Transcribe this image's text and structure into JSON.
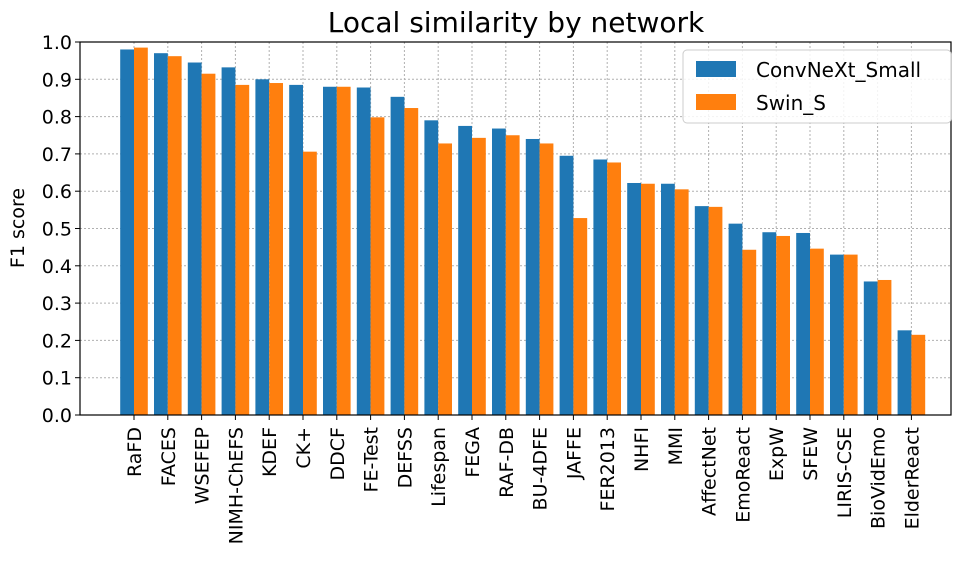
{
  "chart_data": {
    "type": "bar",
    "title": "Local similarity by network",
    "xlabel": "",
    "ylabel": "F1 score",
    "ylim": [
      0.0,
      1.0
    ],
    "yticks": [
      "0.0",
      "0.1",
      "0.2",
      "0.3",
      "0.4",
      "0.5",
      "0.6",
      "0.7",
      "0.8",
      "0.9",
      "1.0"
    ],
    "grid": true,
    "legend_position": "top-right",
    "categories": [
      "RaFD",
      "FACES",
      "WSEFEP",
      "NIMH-ChEFS",
      "KDEF",
      "CK+",
      "DDCF",
      "FE-Test",
      "DEFSS",
      "Lifespan",
      "FEGA",
      "RAF-DB",
      "BU-4DFE",
      "JAFFE",
      "FER2013",
      "NHFI",
      "MMI",
      "AffectNet",
      "EmoReact",
      "ExpW",
      "SFEW",
      "LIRIS-CSE",
      "BioVidEmo",
      "ElderReact"
    ],
    "series": [
      {
        "name": "ConvNeXt_Small",
        "color": "#1f77b4",
        "values": [
          0.98,
          0.97,
          0.945,
          0.932,
          0.9,
          0.885,
          0.88,
          0.878,
          0.853,
          0.79,
          0.775,
          0.768,
          0.74,
          0.695,
          0.685,
          0.622,
          0.62,
          0.56,
          0.513,
          0.49,
          0.488,
          0.43,
          0.358,
          0.227
        ]
      },
      {
        "name": "Swin_S",
        "color": "#ff7f0e",
        "values": [
          0.985,
          0.962,
          0.915,
          0.885,
          0.89,
          0.706,
          0.88,
          0.798,
          0.823,
          0.728,
          0.743,
          0.75,
          0.728,
          0.528,
          0.677,
          0.62,
          0.605,
          0.558,
          0.443,
          0.48,
          0.446,
          0.43,
          0.362,
          0.215
        ]
      }
    ]
  }
}
